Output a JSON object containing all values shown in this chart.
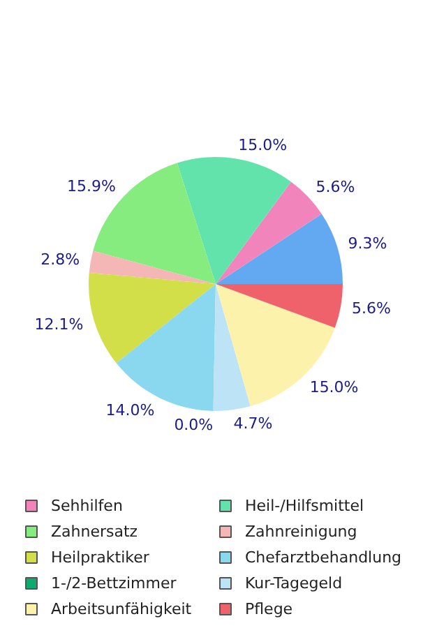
{
  "chart_data": {
    "type": "pie",
    "categories": [
      null,
      "Sehhilfen",
      "Heil-/Hilfsmittel",
      "Zahnersatz",
      "Zahnreinigung",
      "Heilpraktiker",
      "Chefarztbehandlung",
      "1-/2-Bettzimmer",
      "Kur-Tagegeld",
      "Arbeitsunfähigkeit",
      "Pflege"
    ],
    "values": [
      9.3,
      5.6,
      15.0,
      15.9,
      2.8,
      12.1,
      14.0,
      0.0,
      4.7,
      15.0,
      5.6
    ],
    "colors": [
      "#62a9f2",
      "#f084bb",
      "#62e3ab",
      "#86ec80",
      "#f5b6b6",
      "#d2df48",
      "#8ad8f0",
      "#0faa6e",
      "#bde3f7",
      "#fdf2ab",
      "#f0626b"
    ],
    "value_labels": [
      "9.3%",
      "5.6%",
      "15.0%",
      "15.9%",
      "2.8%",
      "12.1%",
      "14.0%",
      "0.0%",
      "4.7%",
      "15.0%",
      "5.6%"
    ],
    "legend": "bottom"
  }
}
